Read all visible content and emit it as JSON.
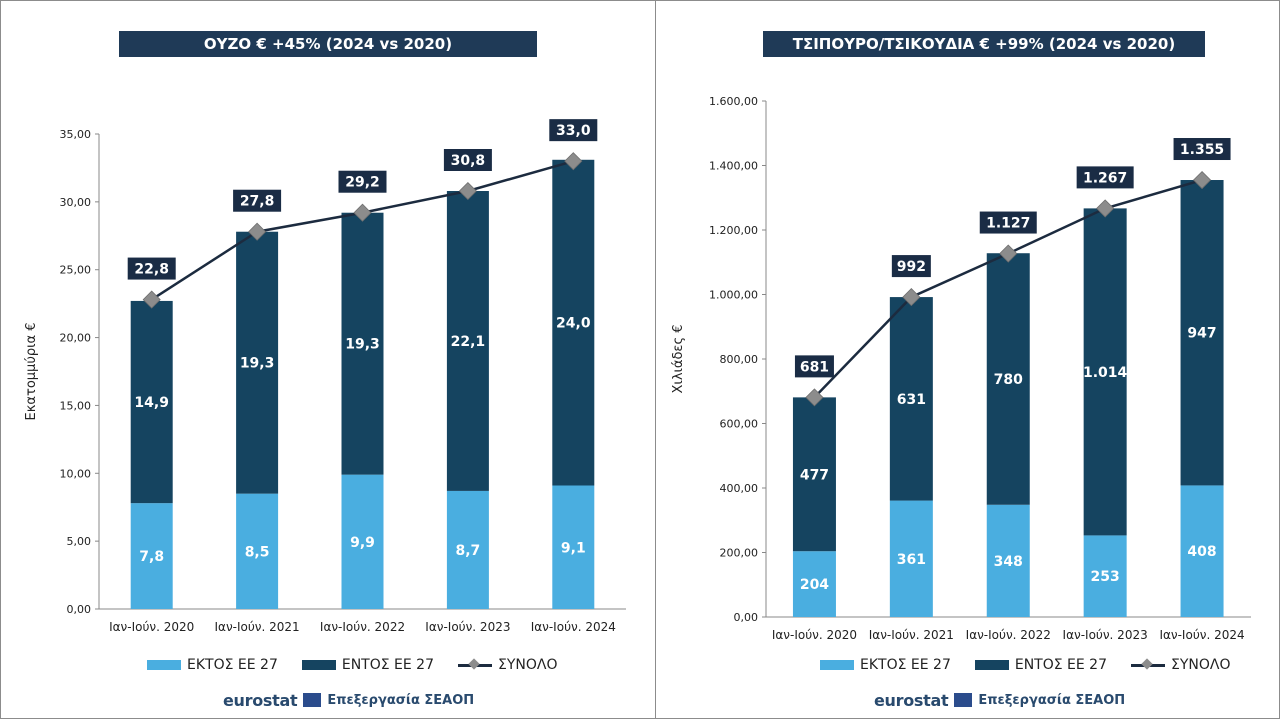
{
  "colors": {
    "outside": "#4aaee0",
    "inside": "#154460",
    "total_line": "#1c2b3f",
    "marker": "#8c8c8c",
    "label_box": "#1a2c45",
    "title_bar": "#1f3a57"
  },
  "legend": {
    "outside": "ΕΚΤΟΣ ΕΕ 27",
    "inside": "ΕΝΤΟΣ ΕΕ 27",
    "total": "ΣΥΝΟΛΟ"
  },
  "source": {
    "logo": "eurostat",
    "text": "Επεξεργασία ΣΕΑΟΠ"
  },
  "chart_data": [
    {
      "type": "bar",
      "title": "ΟΥΖΟ € +45% (2024 vs 2020)",
      "ylabel": "Εκατομμύρια €",
      "categories": [
        "Ιαν-Ιούν. 2020",
        "Ιαν-Ιούν. 2021",
        "Ιαν-Ιούν. 2022",
        "Ιαν-Ιούν. 2023",
        "Ιαν-Ιούν. 2024"
      ],
      "ylim": [
        0,
        35
      ],
      "yticks": [
        "0,00",
        "5,00",
        "10,00",
        "15,00",
        "20,00",
        "25,00",
        "30,00",
        "35,00"
      ],
      "series": [
        {
          "name": "ΕΚΤΟΣ ΕΕ 27",
          "values": [
            7.8,
            8.5,
            9.9,
            8.7,
            9.1
          ],
          "labels": [
            "7,8",
            "8,5",
            "9,9",
            "8,7",
            "9,1"
          ]
        },
        {
          "name": "ΕΝΤΟΣ ΕΕ 27",
          "values": [
            14.9,
            19.3,
            19.3,
            22.1,
            24.0
          ],
          "labels": [
            "14,9",
            "19,3",
            "19,3",
            "22,1",
            "24,0"
          ]
        },
        {
          "name": "ΣΥΝΟΛΟ",
          "values": [
            22.8,
            27.8,
            29.2,
            30.8,
            33.0
          ],
          "labels": [
            "22,8",
            "27,8",
            "29,2",
            "30,8",
            "33,0"
          ]
        }
      ]
    },
    {
      "type": "bar",
      "title": "ΤΣΙΠΟΥΡΟ/ΤΣΙΚΟΥΔΙΑ € +99% (2024 vs 2020)",
      "ylabel": "Χιλιάδες €",
      "categories": [
        "Ιαν-Ιούν. 2020",
        "Ιαν-Ιούν. 2021",
        "Ιαν-Ιούν. 2022",
        "Ιαν-Ιούν. 2023",
        "Ιαν-Ιούν. 2024"
      ],
      "ylim": [
        0,
        1600
      ],
      "yticks": [
        "0,00",
        "200,00",
        "400,00",
        "600,00",
        "800,00",
        "1.000,00",
        "1.200,00",
        "1.400,00",
        "1.600,00"
      ],
      "series": [
        {
          "name": "ΕΚΤΟΣ ΕΕ 27",
          "values": [
            204,
            361,
            348,
            253,
            408
          ],
          "labels": [
            "204",
            "361",
            "348",
            "253",
            "408"
          ]
        },
        {
          "name": "ΕΝΤΟΣ ΕΕ 27",
          "values": [
            477,
            631,
            780,
            1014,
            947
          ],
          "labels": [
            "477",
            "631",
            "780",
            "1.014",
            "947"
          ]
        },
        {
          "name": "ΣΥΝΟΛΟ",
          "values": [
            681,
            992,
            1127,
            1267,
            1355
          ],
          "labels": [
            "681",
            "992",
            "1.127",
            "1.267",
            "1.355"
          ]
        }
      ]
    }
  ]
}
